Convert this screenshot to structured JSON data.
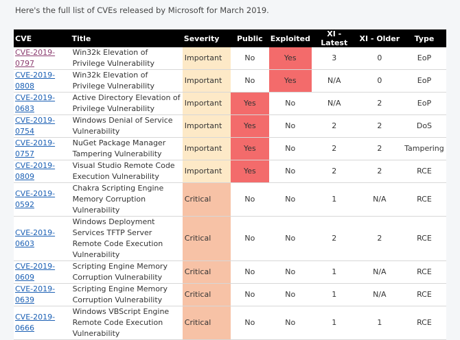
{
  "intro": "Here's the full list of CVEs released by Microsoft for March 2019.",
  "headers": {
    "cve": "CVE",
    "title": "Title",
    "severity": "Severity",
    "public": "Public",
    "exploited": "Exploited",
    "xi_latest": "XI - Latest",
    "xi_older": "XI - Older",
    "type": "Type"
  },
  "rows": [
    {
      "cve": "CVE-2019-0797",
      "title": "Win32k Elevation of Privilege Vulnerability",
      "severity": "Important",
      "public": "No",
      "exploited": "Yes",
      "xi_latest": "3",
      "xi_older": "0",
      "type": "EoP"
    },
    {
      "cve": "CVE-2019-0808",
      "title": "Win32k Elevation of Privilege Vulnerability",
      "severity": "Important",
      "public": "No",
      "exploited": "Yes",
      "xi_latest": "N/A",
      "xi_older": "0",
      "type": "EoP"
    },
    {
      "cve": "CVE-2019-0683",
      "title": "Active Directory Elevation of Privilege Vulnerability",
      "severity": "Important",
      "public": "Yes",
      "exploited": "No",
      "xi_latest": "N/A",
      "xi_older": "2",
      "type": "EoP"
    },
    {
      "cve": "CVE-2019-0754",
      "title": "Windows Denial of Service Vulnerability",
      "severity": "Important",
      "public": "Yes",
      "exploited": "No",
      "xi_latest": "2",
      "xi_older": "2",
      "type": "DoS"
    },
    {
      "cve": "CVE-2019-0757",
      "title": "NuGet Package Manager Tampering Vulnerability",
      "severity": "Important",
      "public": "Yes",
      "exploited": "No",
      "xi_latest": "2",
      "xi_older": "2",
      "type": "Tampering"
    },
    {
      "cve": "CVE-2019-0809",
      "title": "Visual Studio Remote Code Execution Vulnerability",
      "severity": "Important",
      "public": "Yes",
      "exploited": "No",
      "xi_latest": "2",
      "xi_older": "2",
      "type": "RCE"
    },
    {
      "cve": "CVE-2019-0592",
      "title": "Chakra Scripting Engine Memory Corruption Vulnerability",
      "severity": "Critical",
      "public": "No",
      "exploited": "No",
      "xi_latest": "1",
      "xi_older": "N/A",
      "type": "RCE"
    },
    {
      "cve": "CVE-2019-0603",
      "title": "Windows Deployment Services TFTP Server Remote Code Execution Vulnerability",
      "severity": "Critical",
      "public": "No",
      "exploited": "No",
      "xi_latest": "2",
      "xi_older": "2",
      "type": "RCE"
    },
    {
      "cve": "CVE-2019-0609",
      "title": "Scripting Engine Memory Corruption Vulnerability",
      "severity": "Critical",
      "public": "No",
      "exploited": "No",
      "xi_latest": "1",
      "xi_older": "N/A",
      "type": "RCE"
    },
    {
      "cve": "CVE-2019-0639",
      "title": "Scripting Engine Memory Corruption Vulnerability",
      "severity": "Critical",
      "public": "No",
      "exploited": "No",
      "xi_latest": "1",
      "xi_older": "N/A",
      "type": "RCE"
    },
    {
      "cve": "CVE-2019-0666",
      "title": "Windows VBScript Engine Remote Code Execution Vulnerability",
      "severity": "Critical",
      "public": "No",
      "exploited": "No",
      "xi_latest": "1",
      "xi_older": "1",
      "type": "RCE"
    }
  ],
  "colors": {
    "important": "#fde9c7",
    "critical": "#f7c2a6",
    "yes": "#f36b6b",
    "header_bg": "#000000",
    "link": "#1a5fb4",
    "visited_link": "#8a3a6e"
  }
}
